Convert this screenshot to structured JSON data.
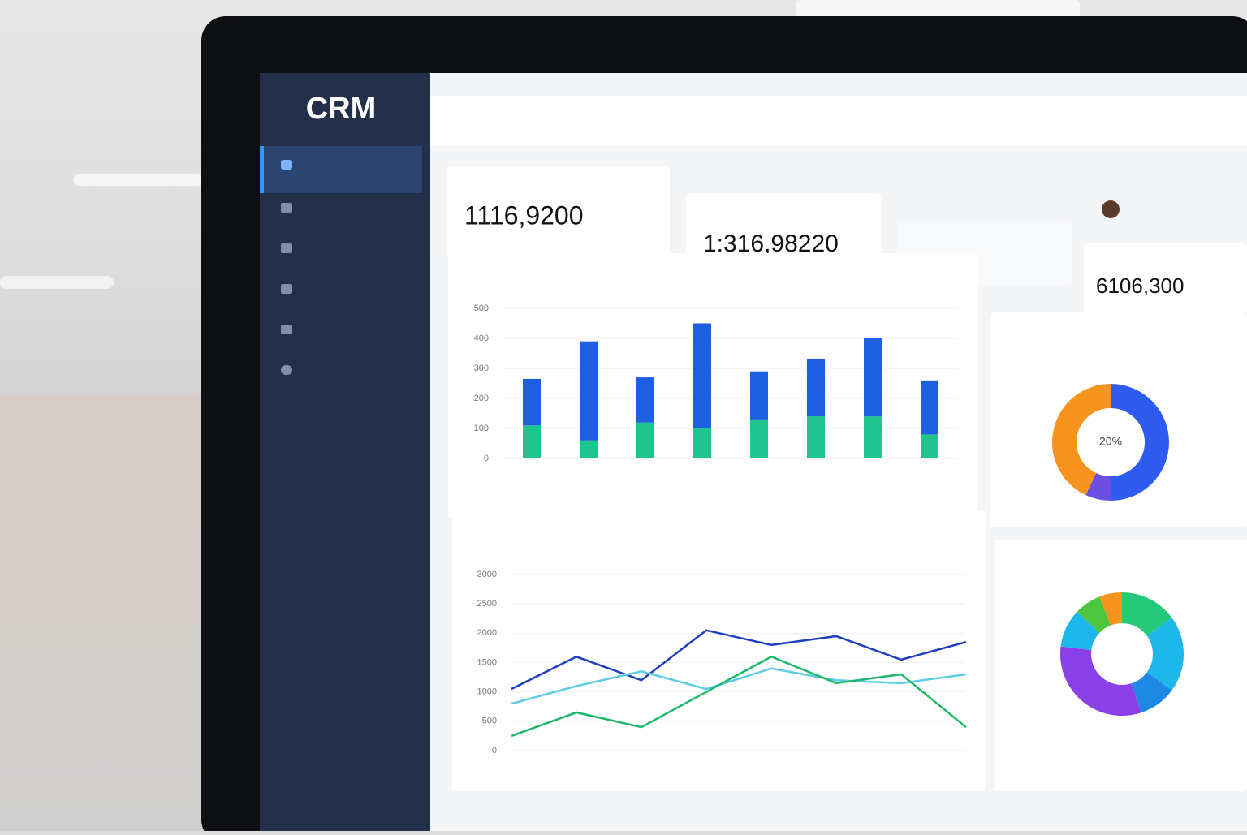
{
  "sidebar": {
    "logo": "CRM"
  },
  "kpis": [
    {
      "value": "1116,9200"
    },
    {
      "value": "1:316,98220"
    },
    {
      "value": "6106,300"
    }
  ],
  "chart_data": [
    {
      "type": "bar",
      "stacked": true,
      "categories": [
        null,
        null,
        null,
        null,
        null,
        null,
        null,
        null
      ],
      "series": [
        {
          "color": "#1fc48f",
          "values": [
            110,
            60,
            120,
            100,
            130,
            140,
            140,
            80
          ]
        },
        {
          "color": "#1d5fe0",
          "values": [
            155,
            330,
            150,
            350,
            160,
            190,
            260,
            180
          ]
        }
      ],
      "ylim": [
        0,
        500
      ],
      "yticks": [
        0,
        100,
        200,
        300,
        400,
        500
      ],
      "grid": true
    },
    {
      "type": "line",
      "categories": [
        null,
        null,
        null,
        null,
        null,
        null,
        null,
        null
      ],
      "series": [
        {
          "color": "#1f3fc0",
          "values": [
            1050,
            1600,
            1200,
            2050,
            1800,
            1950,
            1550,
            1850
          ]
        },
        {
          "color": "#5ccbe8",
          "values": [
            800,
            1100,
            1350,
            1050,
            1400,
            1200,
            1150,
            1300
          ]
        },
        {
          "color": "#1fb86a",
          "values": [
            250,
            650,
            400,
            1000,
            1600,
            1150,
            1300,
            400
          ]
        }
      ],
      "ylim": [
        0,
        3000
      ],
      "yticks": [
        0,
        500,
        1000,
        1500,
        2000,
        2500,
        3000
      ],
      "grid": true
    },
    {
      "type": "pie",
      "center_label": "20%",
      "values": [
        50,
        7,
        43
      ],
      "colors": [
        "#2f5bf0",
        "#6b4fe0",
        "#f7941d"
      ]
    },
    {
      "type": "pie",
      "values": [
        15,
        20,
        10,
        32,
        10,
        7,
        6
      ],
      "colors": [
        "#26c97a",
        "#1cb8ea",
        "#1e88e5",
        "#8a3fe8",
        "#1cb8ea",
        "#4cc63c",
        "#f7941d"
      ]
    }
  ]
}
